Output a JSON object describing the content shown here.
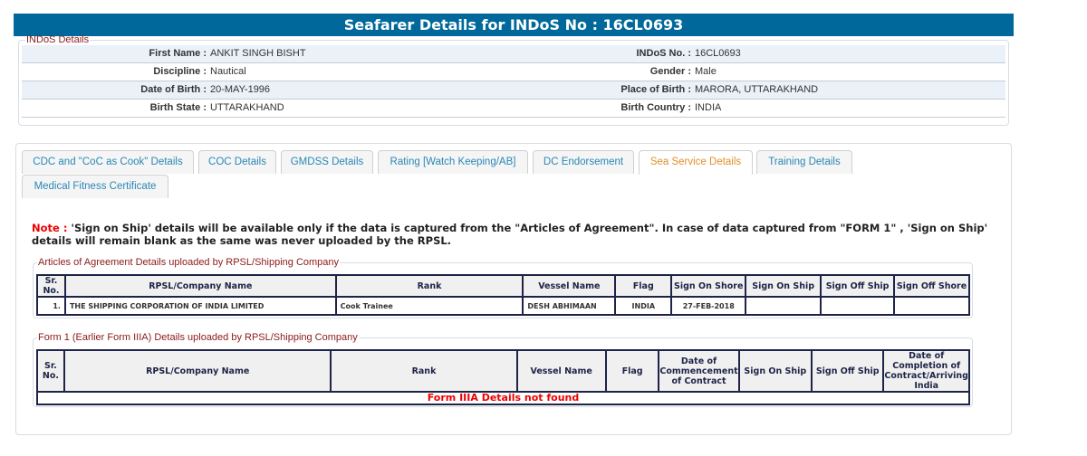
{
  "title": "Seafarer Details for INDoS No : 16CL0693",
  "indos": {
    "legend": "INDoS Details",
    "rows": [
      {
        "l1": "First Name :",
        "v1": "ANKIT SINGH BISHT",
        "l2": "INDoS No. :",
        "v2": "16CL0693"
      },
      {
        "l1": "Discipline :",
        "v1": "Nautical",
        "l2": "Gender :",
        "v2": "Male"
      },
      {
        "l1": "Date of Birth :",
        "v1": "20-MAY-1996",
        "l2": "Place of Birth :",
        "v2": "MARORA, UTTARAKHAND"
      },
      {
        "l1": "Birth State :",
        "v1": "UTTARAKHAND",
        "l2": "Birth Country :",
        "v2": "INDIA"
      }
    ]
  },
  "tabs": [
    "CDC and \"CoC as Cook\" Details",
    "COC Details",
    "GMDSS Details",
    "Rating [Watch Keeping/AB]",
    "DC Endorsement",
    "Sea Service Details",
    "Training Details",
    "Medical Fitness Certificate"
  ],
  "active_tab": "Sea Service Details",
  "note": {
    "label": "Note :",
    "text": " 'Sign on Ship' details will be available only if the data is captured from the \"Articles of Agreement\". In case of data captured from \"FORM 1\" , 'Sign on Ship' details will remain blank as the same was never uploaded by the RPSL."
  },
  "articles": {
    "legend": "Articles of Agreement Details uploaded by RPSL/Shipping Company",
    "headers": [
      "Sr. No.",
      "RPSL/Company Name",
      "Rank",
      "Vessel Name",
      "Flag",
      "Sign On Shore",
      "Sign On Ship",
      "Sign Off Ship",
      "Sign Off Shore"
    ],
    "rows": [
      [
        "1.",
        "THE SHIPPING CORPORATION OF INDIA LIMITED",
        "Cook Trainee",
        "DESH ABHIMAAN",
        "INDIA",
        "27-FEB-2018",
        "",
        "",
        ""
      ]
    ]
  },
  "form1": {
    "legend": "Form 1 (Earlier Form IIIA) Details uploaded by RPSL/Shipping Company",
    "headers": [
      "Sr. No.",
      "RPSL/Company Name",
      "Rank",
      "Vessel Name",
      "Flag",
      "Date of Commencement of Contract",
      "Sign On Ship",
      "Sign Off Ship",
      "Date of Completion of Contract/Arriving India"
    ],
    "empty": "Form IIIA Details not found"
  },
  "colors": {
    "header": "#00689a",
    "tab_text": "#2a87b5",
    "active_tab": "#e0902c",
    "legend": "#8b1a1a",
    "note": "#ee0000"
  }
}
